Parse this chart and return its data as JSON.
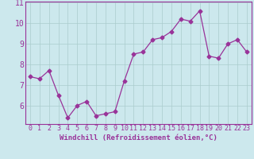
{
  "x": [
    0,
    1,
    2,
    3,
    4,
    5,
    6,
    7,
    8,
    9,
    10,
    11,
    12,
    13,
    14,
    15,
    16,
    17,
    18,
    19,
    20,
    21,
    22,
    23
  ],
  "y": [
    7.4,
    7.3,
    7.7,
    6.5,
    5.4,
    6.0,
    6.2,
    5.5,
    5.6,
    5.7,
    7.2,
    8.5,
    8.6,
    9.2,
    9.3,
    9.6,
    10.2,
    10.1,
    10.6,
    8.4,
    8.3,
    9.0,
    9.2,
    8.6
  ],
  "line_color": "#993399",
  "marker": "D",
  "marker_size": 2.5,
  "bg_color": "#cce8ed",
  "grid_color": "#aacccc",
  "xlabel": "Windchill (Refroidissement éolien,°C)",
  "xlabel_color": "#993399",
  "tick_color": "#993399",
  "ylim": [
    5.1,
    11.05
  ],
  "xlim": [
    -0.5,
    23.5
  ],
  "yticks": [
    6,
    7,
    8,
    9,
    10,
    11
  ],
  "xticks": [
    0,
    1,
    2,
    3,
    4,
    5,
    6,
    7,
    8,
    9,
    10,
    11,
    12,
    13,
    14,
    15,
    16,
    17,
    18,
    19,
    20,
    21,
    22,
    23
  ],
  "tick_fontsize": 6,
  "xlabel_fontsize": 6.5
}
